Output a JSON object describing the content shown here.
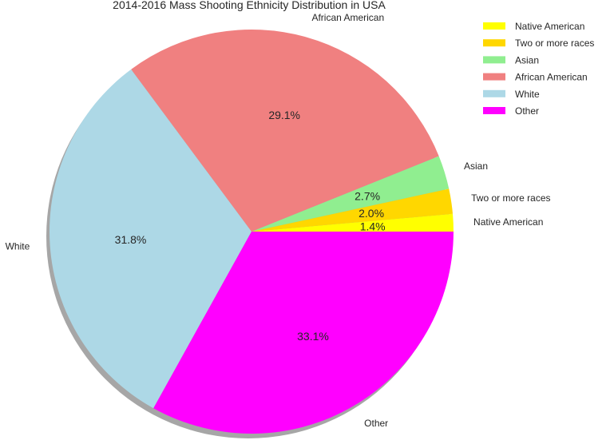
{
  "chart_data": {
    "type": "pie",
    "title": "2014-2016 Mass Shooting Ethnicity Distribution in USA",
    "slices": [
      {
        "label": "Native American",
        "value": 1.4,
        "pct_label": "1.4%",
        "color": "#ffff00"
      },
      {
        "label": "Two or more races",
        "value": 2.0,
        "pct_label": "2.0%",
        "color": "#ffd700"
      },
      {
        "label": "Asian",
        "value": 2.7,
        "pct_label": "2.7%",
        "color": "#90ee90"
      },
      {
        "label": "African American",
        "value": 29.1,
        "pct_label": "29.1%",
        "color": "#f08080"
      },
      {
        "label": "White",
        "value": 31.8,
        "pct_label": "31.8%",
        "color": "#add8e6"
      },
      {
        "label": "Other",
        "value": 33.1,
        "pct_label": "33.1%",
        "color": "#ff00ff"
      }
    ],
    "legend_placement": "top-right",
    "shadow": true,
    "start_angle_deg": 0,
    "direction": "counterclockwise"
  }
}
